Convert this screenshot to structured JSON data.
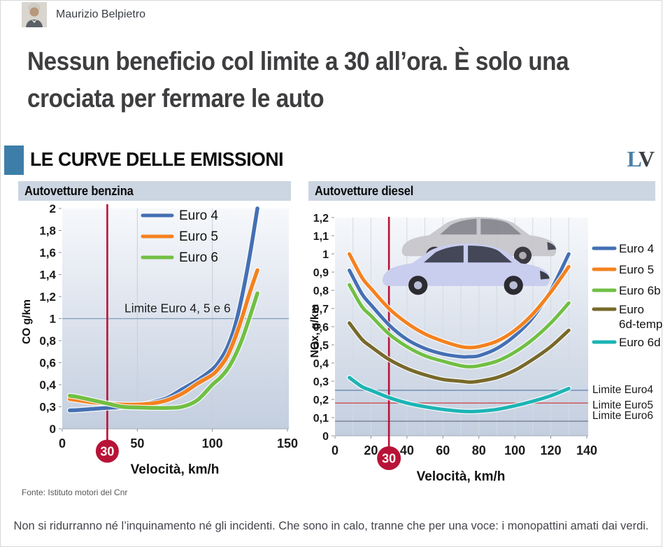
{
  "byline": {
    "author": "Maurizio Belpietro"
  },
  "headline": {
    "line1": "Nessun beneficio col limite a 30 all’ora. È solo una",
    "line2": "crociata per fermare le auto"
  },
  "section": {
    "title": "LE CURVE DELLE EMISSIONI",
    "logo_l": "L",
    "logo_v": "V"
  },
  "source": "Fonte: Istituto motori del Cnr",
  "caption": "Non si ridurranno né l’inquinamento né gli incidenti. Che sono in calo, tranne che per una voce: i monopattini amati dai verdi.",
  "colors": {
    "accent_square": "#3d7ea9",
    "lv_blue": "#4a7fa6",
    "lv_dark": "#3c4046",
    "header_bar": "#ccd5e2",
    "marker_red": "#b81237",
    "plot_gradient_top": "#f6f8fb",
    "plot_gradient_bottom": "#c3cedf"
  },
  "chart_data": [
    {
      "type": "line",
      "id": "benzina",
      "title": "Autovetture benzina",
      "xlabel": "Velocità, km/h",
      "ylabel": "CO g/km",
      "x_range": [
        0,
        150
      ],
      "x_ticks": [
        "0",
        "50",
        "100",
        "150"
      ],
      "x_gridlines": [
        50,
        100
      ],
      "y_tick_labels": [
        "2",
        "1,8",
        "1,6",
        "1,4",
        "1,2",
        "1",
        "0,8",
        "0,6",
        "0,4",
        "0,3",
        "0"
      ],
      "grid": "vertical-only",
      "legend_position": "top-center-inside",
      "speed_marker": {
        "value": 30,
        "label": "30"
      },
      "limit_lines": [
        {
          "value": 1,
          "label": "Limite Euro 4, 5 e 6",
          "color": "#7f9db9",
          "label_inside": true
        }
      ],
      "series": [
        {
          "name": "Euro 4",
          "color": "#4470b4",
          "x": [
            5,
            10,
            20,
            30,
            40,
            50,
            60,
            70,
            80,
            90,
            100,
            105,
            110,
            115,
            120,
            125,
            130
          ],
          "y": [
            0.25,
            0.255,
            0.27,
            0.285,
            0.295,
            0.305,
            0.32,
            0.34,
            0.38,
            0.44,
            0.54,
            0.62,
            0.74,
            0.93,
            1.22,
            1.58,
            2.0
          ]
        },
        {
          "name": "Euro 5",
          "color": "#f4811f",
          "x": [
            5,
            10,
            20,
            30,
            40,
            50,
            60,
            70,
            80,
            90,
            100,
            105,
            110,
            115,
            120,
            125,
            130
          ],
          "y": [
            0.335,
            0.33,
            0.32,
            0.315,
            0.31,
            0.31,
            0.315,
            0.33,
            0.36,
            0.41,
            0.49,
            0.56,
            0.66,
            0.82,
            1.02,
            1.24,
            1.44
          ]
        },
        {
          "name": "Euro 6",
          "color": "#71bf44",
          "x": [
            5,
            10,
            20,
            30,
            40,
            50,
            60,
            70,
            80,
            90,
            100,
            105,
            110,
            115,
            120,
            125,
            130
          ],
          "y": [
            0.35,
            0.345,
            0.33,
            0.315,
            0.3,
            0.29,
            0.285,
            0.285,
            0.3,
            0.33,
            0.4,
            0.46,
            0.54,
            0.66,
            0.82,
            1.02,
            1.23
          ]
        }
      ]
    },
    {
      "type": "line",
      "id": "diesel",
      "title": "Autovetture diesel",
      "xlabel": "Velocità, km/h",
      "ylabel": "NOx, g/km",
      "x_range": [
        0,
        140
      ],
      "x_ticks": [
        "0",
        "20",
        "40",
        "60",
        "80",
        "100",
        "120",
        "140"
      ],
      "x_gridlines": [
        10,
        20,
        30,
        40,
        50,
        60,
        70,
        80,
        90,
        100,
        110,
        120,
        130
      ],
      "y_tick_labels": [
        "1,2",
        "1,1",
        "1",
        "0,9",
        "0,8",
        "0,7",
        "0,6",
        "0,5",
        "0,4",
        "0,3",
        "0,2",
        "0,1",
        "0"
      ],
      "grid": "vertical-only",
      "legend_position": "right-outside",
      "speed_marker": {
        "value": 30,
        "label": "30"
      },
      "limit_lines": [
        {
          "value": 0.25,
          "label": "Limite Euro4",
          "color": "#5d7fae"
        },
        {
          "value": 0.18,
          "label": "Limite Euro5",
          "color": "#cc4b50"
        },
        {
          "value": 0.08,
          "label": "Limite Euro6",
          "color": "#74828f"
        }
      ],
      "series": [
        {
          "name": "Euro 4",
          "color": "#4470b4",
          "x": [
            8,
            15,
            20,
            30,
            40,
            50,
            60,
            70,
            75,
            80,
            90,
            100,
            110,
            120,
            130
          ],
          "y": [
            0.91,
            0.78,
            0.72,
            0.61,
            0.53,
            0.48,
            0.45,
            0.435,
            0.435,
            0.44,
            0.48,
            0.55,
            0.65,
            0.8,
            1.0
          ]
        },
        {
          "name": "Euro 5",
          "color": "#f4811f",
          "x": [
            8,
            15,
            20,
            30,
            40,
            50,
            60,
            70,
            75,
            80,
            90,
            100,
            110,
            120,
            130
          ],
          "y": [
            1.0,
            0.87,
            0.81,
            0.7,
            0.62,
            0.56,
            0.52,
            0.49,
            0.485,
            0.49,
            0.52,
            0.58,
            0.67,
            0.79,
            0.93
          ]
        },
        {
          "name": "Euro 6b",
          "color": "#71bf44",
          "x": [
            8,
            15,
            20,
            30,
            40,
            50,
            60,
            70,
            75,
            80,
            90,
            100,
            110,
            120,
            130
          ],
          "y": [
            0.83,
            0.71,
            0.66,
            0.56,
            0.49,
            0.44,
            0.41,
            0.385,
            0.38,
            0.385,
            0.41,
            0.46,
            0.53,
            0.62,
            0.73
          ]
        },
        {
          "name": "Euro 6d-temp",
          "color": "#77692a",
          "legend_lines": [
            "Euro",
            "6d-temp"
          ],
          "x": [
            8,
            15,
            20,
            30,
            40,
            50,
            60,
            70,
            75,
            80,
            90,
            100,
            110,
            120,
            130
          ],
          "y": [
            0.62,
            0.53,
            0.49,
            0.42,
            0.37,
            0.335,
            0.31,
            0.3,
            0.295,
            0.3,
            0.32,
            0.36,
            0.42,
            0.49,
            0.58
          ]
        },
        {
          "name": "Euro 6d",
          "color": "#1cb4b4",
          "x": [
            8,
            15,
            20,
            30,
            40,
            50,
            60,
            70,
            75,
            80,
            90,
            100,
            110,
            120,
            130
          ],
          "y": [
            0.32,
            0.27,
            0.25,
            0.21,
            0.18,
            0.16,
            0.145,
            0.135,
            0.133,
            0.135,
            0.145,
            0.165,
            0.19,
            0.22,
            0.26
          ]
        }
      ]
    }
  ]
}
